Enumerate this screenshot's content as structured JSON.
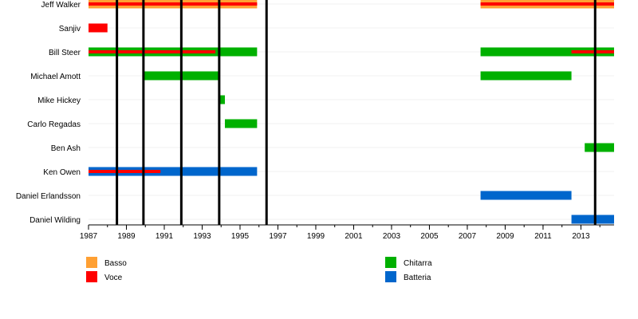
{
  "chart_data": {
    "type": "timeline",
    "title": "",
    "x_range": [
      1987.0,
      2014.75
    ],
    "x_ticks": [
      "1987",
      "1989",
      "1991",
      "1993",
      "1995",
      "1997",
      "1999",
      "2001",
      "2003",
      "2005",
      "2007",
      "2009",
      "2011",
      "2013"
    ],
    "members": [
      "Jeff Walker",
      "Sanjiv",
      "Bill Steer",
      "Michael Amott",
      "Mike Hickey",
      "Carlo Regadas",
      "Ben Ash",
      "Ken Owen",
      "Daniel Erlandsson",
      "Daniel Wilding"
    ],
    "roles": [
      {
        "key": "bass",
        "label": "Basso",
        "color": "#ffa033"
      },
      {
        "key": "vocals",
        "label": "Voce",
        "color": "#ff0000"
      },
      {
        "key": "guitar",
        "label": "Chitarra",
        "color": "#00b000"
      },
      {
        "key": "drums",
        "label": "Batteria",
        "color": "#0066cc"
      }
    ],
    "bars": [
      {
        "member": "Jeff Walker",
        "role": "bass",
        "start": 1987.0,
        "end": 1995.9
      },
      {
        "member": "Jeff Walker",
        "role": "vocals",
        "start": 1987.0,
        "end": 1995.9,
        "overlay": true
      },
      {
        "member": "Jeff Walker",
        "role": "bass",
        "start": 2007.7,
        "end": 2014.75
      },
      {
        "member": "Jeff Walker",
        "role": "vocals",
        "start": 2007.7,
        "end": 2014.75,
        "overlay": true
      },
      {
        "member": "Sanjiv",
        "role": "vocals",
        "start": 1987.0,
        "end": 1988.0
      },
      {
        "member": "Bill Steer",
        "role": "guitar",
        "start": 1987.0,
        "end": 1995.9
      },
      {
        "member": "Bill Steer",
        "role": "vocals",
        "start": 1987.0,
        "end": 1993.7,
        "overlay": true
      },
      {
        "member": "Bill Steer",
        "role": "guitar",
        "start": 2007.7,
        "end": 2014.75
      },
      {
        "member": "Bill Steer",
        "role": "vocals",
        "start": 2012.5,
        "end": 2014.75,
        "overlay": true
      },
      {
        "member": "Michael Amott",
        "role": "guitar",
        "start": 1989.9,
        "end": 1993.9
      },
      {
        "member": "Michael Amott",
        "role": "guitar",
        "start": 2007.7,
        "end": 2012.5
      },
      {
        "member": "Mike Hickey",
        "role": "guitar",
        "start": 1993.9,
        "end": 1994.2
      },
      {
        "member": "Carlo Regadas",
        "role": "guitar",
        "start": 1994.2,
        "end": 1995.9
      },
      {
        "member": "Ben Ash",
        "role": "guitar",
        "start": 2013.2,
        "end": 2014.75
      },
      {
        "member": "Ken Owen",
        "role": "drums",
        "start": 1987.0,
        "end": 1995.9
      },
      {
        "member": "Ken Owen",
        "role": "vocals",
        "start": 1987.0,
        "end": 1990.8,
        "overlay": true
      },
      {
        "member": "Daniel Erlandsson",
        "role": "drums",
        "start": 2007.7,
        "end": 2012.5
      },
      {
        "member": "Daniel Wilding",
        "role": "drums",
        "start": 2012.5,
        "end": 2014.75
      }
    ],
    "release_lines": [
      1988.5,
      1989.9,
      1991.9,
      1993.9,
      1996.4,
      2013.75
    ],
    "legend": [
      {
        "label": "Basso",
        "color": "#ffa033"
      },
      {
        "label": "Voce",
        "color": "#ff0000"
      },
      {
        "label": "Chitarra",
        "color": "#00b000"
      },
      {
        "label": "Batteria",
        "color": "#0066cc"
      }
    ]
  }
}
